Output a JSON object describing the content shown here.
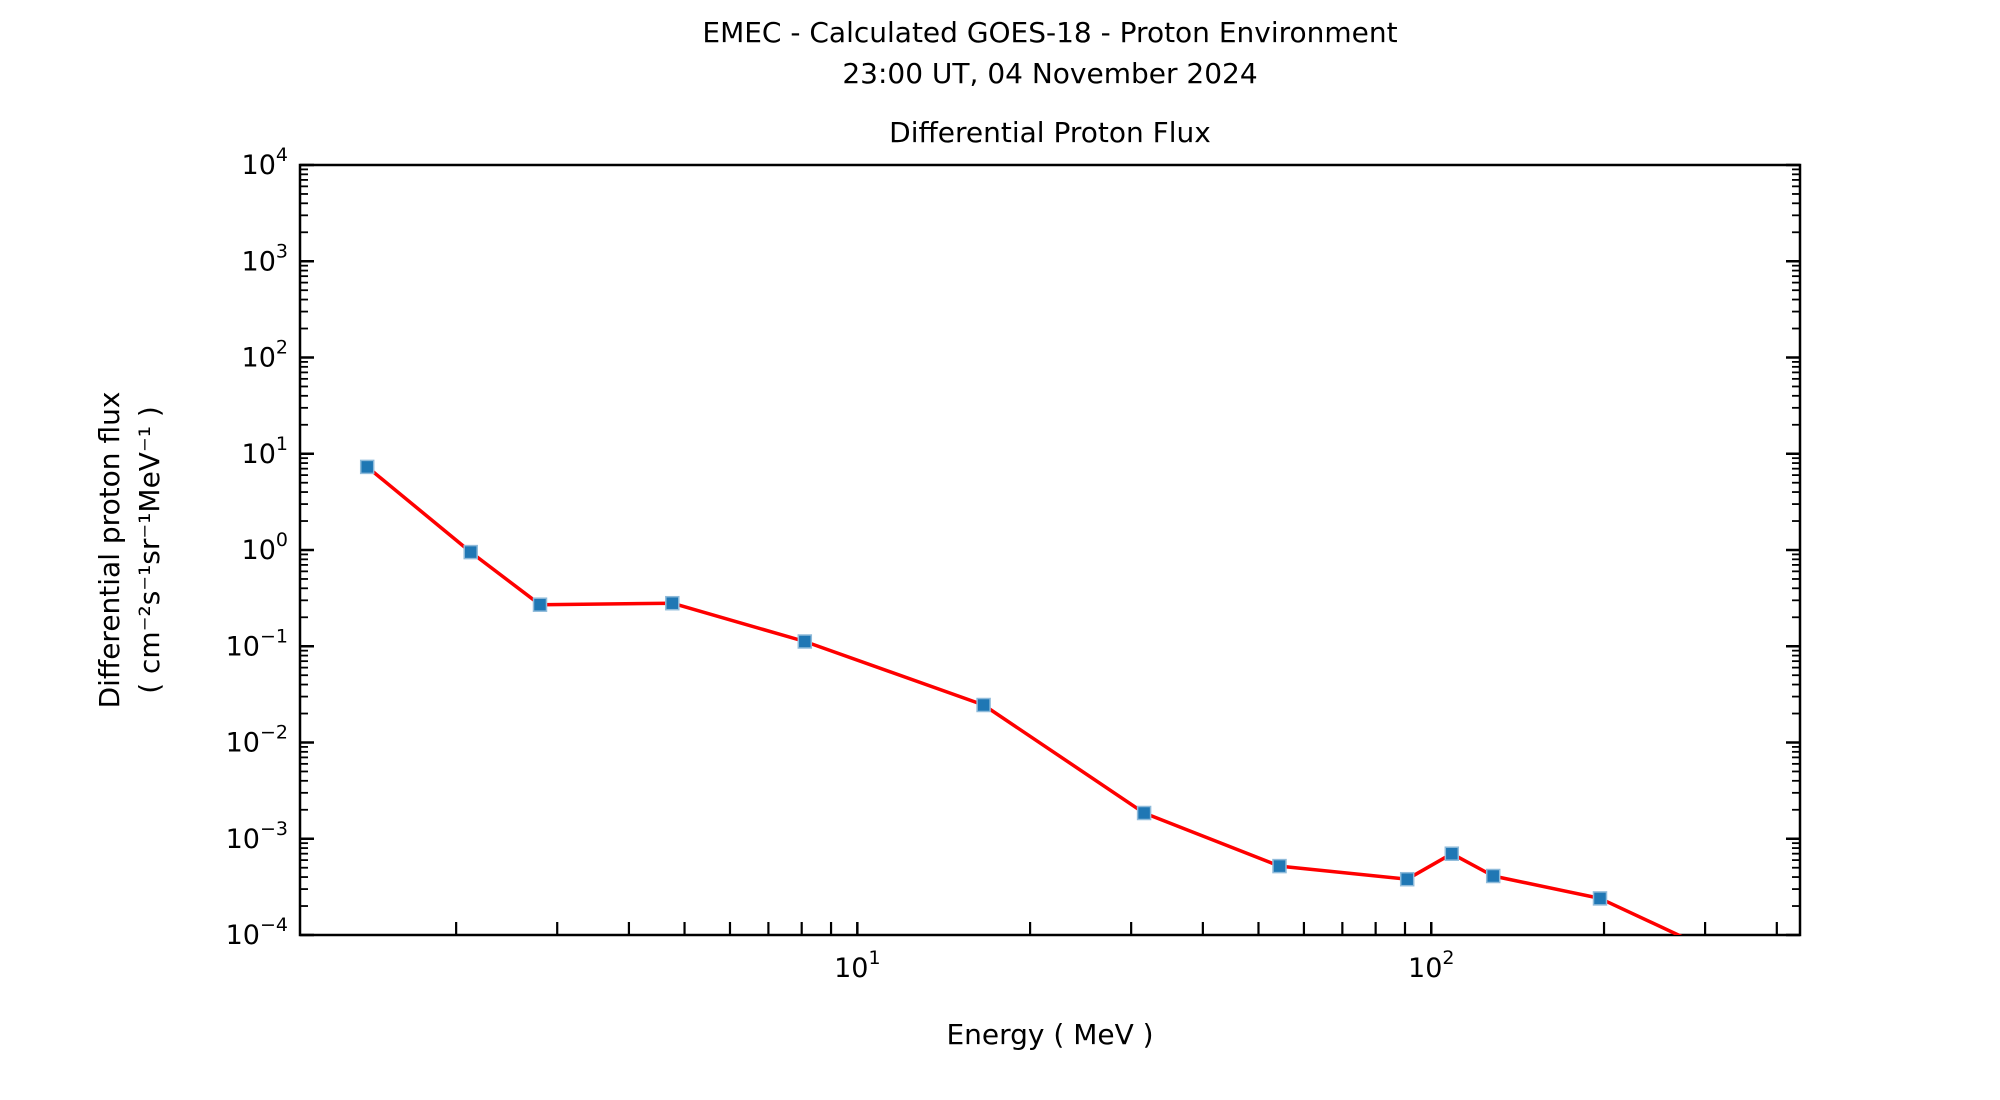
{
  "figure": {
    "suptitle_line1": "EMEC - Calculated GOES-18 - Proton Environment",
    "suptitle_line2": "23:00 UT, 04 November 2024"
  },
  "chart_data": {
    "type": "line",
    "title": "Differential Proton Flux",
    "xlabel": "Energy ( MeV )",
    "ylabel_line1": "Differential proton flux",
    "ylabel_line2": "( cm⁻²s⁻¹sr⁻¹MeV⁻¹ )",
    "x_scale": "log",
    "y_scale": "log",
    "xlim": [
      1.069,
      439
    ],
    "ylim": [
      0.0001,
      10000
    ],
    "x_major_tick_exponents": [
      1,
      2
    ],
    "y_major_tick_exponents": [
      4,
      3,
      2,
      1,
      0,
      -1,
      -2,
      -3,
      -4
    ],
    "grid": false,
    "legend": false,
    "tick_direction": "in",
    "colors": {
      "line": "#fe0000",
      "marker": "#1f77b4",
      "marker_edge": "#8fbbda",
      "axes": "#000000",
      "background": "#ffffff"
    },
    "series": [
      {
        "name": "Differential proton flux",
        "marker": "square",
        "x": [
          1.4,
          2.12,
          2.8,
          4.76,
          8.1,
          16.6,
          31.6,
          54.4,
          90.8,
          108.6,
          128.2,
          196.8,
          334
        ],
        "y": [
          7.3,
          0.95,
          0.27,
          0.28,
          0.112,
          0.0245,
          0.00185,
          0.00052,
          0.00038,
          0.0007,
          0.00041,
          0.00024,
          5.5e-05
        ]
      }
    ]
  }
}
